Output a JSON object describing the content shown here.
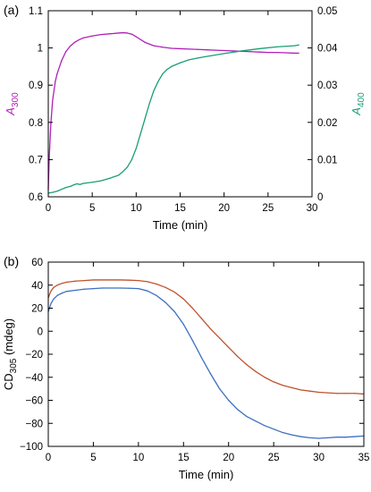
{
  "chart_data": [
    {
      "panel_label": "(a)",
      "type": "line",
      "xlabel": "Time (min)",
      "ylabel": {
        "main": "A",
        "sub": "300"
      },
      "y2label": {
        "main": "A",
        "sub": "400"
      },
      "xlim": [
        0,
        30
      ],
      "ylim": [
        0.6,
        1.1
      ],
      "y2lim": [
        0,
        0.05
      ],
      "xticks": [
        "0",
        "5",
        "10",
        "15",
        "20",
        "25",
        "30"
      ],
      "yticks": [
        "0.6",
        "0.7",
        "0.8",
        "0.9",
        "1",
        "1.1"
      ],
      "y2ticks": [
        "0",
        "0.01",
        "0.02",
        "0.03",
        "0.04",
        "0.05"
      ],
      "grid": false,
      "series": [
        {
          "axis": "left",
          "color": "#b020b8",
          "x": [
            0,
            0.1,
            0.3,
            0.5,
            0.8,
            1.0,
            1.5,
            2.0,
            2.5,
            3.0,
            3.5,
            4.0,
            5.0,
            6.0,
            7.0,
            8.0,
            8.5,
            9.0,
            9.5,
            10.0,
            11.0,
            12.0,
            13.0,
            14.0,
            15.0,
            16.0,
            17.0,
            18.0,
            19.0,
            20.0,
            21.0,
            22.0,
            23.0,
            24.0,
            25.0,
            26.0,
            27.0,
            28.0,
            28.5
          ],
          "y": [
            0.62,
            0.7,
            0.8,
            0.86,
            0.91,
            0.93,
            0.965,
            0.99,
            1.005,
            1.015,
            1.022,
            1.027,
            1.032,
            1.036,
            1.038,
            1.04,
            1.041,
            1.04,
            1.037,
            1.03,
            1.015,
            1.006,
            1.002,
            0.999,
            0.998,
            0.997,
            0.996,
            0.995,
            0.994,
            0.993,
            0.992,
            0.991,
            0.99,
            0.989,
            0.988,
            0.988,
            0.987,
            0.986,
            0.986
          ]
        },
        {
          "axis": "right",
          "color": "#1a9e77",
          "x": [
            0,
            0.5,
            1.0,
            1.5,
            2.0,
            2.5,
            3.0,
            3.3,
            3.6,
            4.0,
            5.0,
            6.0,
            7.0,
            8.0,
            8.5,
            9.0,
            9.5,
            10.0,
            10.5,
            11.0,
            11.5,
            12.0,
            12.5,
            13.0,
            13.5,
            14.0,
            15.0,
            16.0,
            17.0,
            18.0,
            20.0,
            22.0,
            24.0,
            26.0,
            28.0,
            28.5
          ],
          "y": [
            0.001,
            0.0012,
            0.0015,
            0.002,
            0.0025,
            0.0028,
            0.0033,
            0.0035,
            0.0033,
            0.0036,
            0.0039,
            0.0043,
            0.005,
            0.0058,
            0.0068,
            0.008,
            0.01,
            0.013,
            0.017,
            0.021,
            0.025,
            0.0285,
            0.031,
            0.033,
            0.0342,
            0.035,
            0.036,
            0.0368,
            0.0373,
            0.0377,
            0.0385,
            0.0392,
            0.0398,
            0.0403,
            0.0406,
            0.0408
          ]
        }
      ]
    },
    {
      "panel_label": "(b)",
      "type": "line",
      "xlabel": "Time (min)",
      "ylabel": {
        "main": "CD",
        "sub": "305",
        "suffix": " (mdeg)"
      },
      "xlim": [
        0,
        35
      ],
      "ylim": [
        -100,
        60
      ],
      "xticks": [
        "0",
        "5",
        "10",
        "15",
        "20",
        "25",
        "30",
        "35"
      ],
      "yticks": [
        "-100",
        "-80",
        "-60",
        "-40",
        "-20",
        "0",
        "20",
        "40",
        "60"
      ],
      "grid": false,
      "series": [
        {
          "color": "#c0522b",
          "x": [
            0,
            0.3,
            0.6,
            1.0,
            1.5,
            2.0,
            3.0,
            4.0,
            5.0,
            6.0,
            7.0,
            8.0,
            9.0,
            10.0,
            11.0,
            12.0,
            13.0,
            14.0,
            15.0,
            16.0,
            17.0,
            18.0,
            19.0,
            20.0,
            21.0,
            22.0,
            23.0,
            24.0,
            25.0,
            26.0,
            27.0,
            28.0,
            29.0,
            30.0,
            31.0,
            32.0,
            33.0,
            34.0,
            35.0
          ],
          "y": [
            29,
            35,
            38,
            40,
            41.5,
            42.5,
            43.5,
            44,
            44.5,
            44.5,
            44.5,
            44.5,
            44.3,
            44,
            43,
            41,
            38,
            34,
            28,
            20,
            11,
            2,
            -6,
            -14,
            -22,
            -29,
            -35,
            -40,
            -44,
            -47,
            -49,
            -51,
            -52,
            -53,
            -53.5,
            -54,
            -54,
            -54,
            -54.5
          ]
        },
        {
          "color": "#3d6fc0",
          "x": [
            0,
            0.3,
            0.6,
            1.0,
            1.5,
            2.0,
            3.0,
            4.0,
            5.0,
            6.0,
            7.0,
            8.0,
            9.0,
            10.0,
            11.0,
            12.0,
            13.0,
            14.0,
            15.0,
            16.0,
            17.0,
            18.0,
            19.0,
            20.0,
            21.0,
            22.0,
            23.0,
            24.0,
            25.0,
            26.0,
            27.0,
            28.0,
            29.0,
            30.0,
            31.0,
            32.0,
            33.0,
            34.0,
            35.0
          ],
          "y": [
            17,
            24,
            28,
            31,
            33,
            34.5,
            35.5,
            36.5,
            37,
            37.5,
            37.5,
            37.5,
            37.3,
            37,
            35,
            31,
            25,
            17,
            6,
            -8,
            -23,
            -37,
            -50,
            -60,
            -68,
            -74,
            -78,
            -82,
            -85,
            -88,
            -90,
            -91.5,
            -92.5,
            -93,
            -92.5,
            -92,
            -92,
            -91.5,
            -91
          ]
        }
      ]
    }
  ]
}
